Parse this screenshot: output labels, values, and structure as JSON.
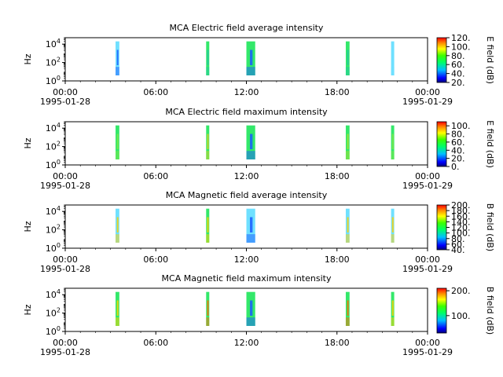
{
  "chart_data": [
    {
      "type": "heatmap",
      "title": "MCA  Electric field average intensity",
      "ylabel": "Hz",
      "colorbar_label": "E field (dB)",
      "colorbar_ticks": [
        "20.",
        "40.",
        "60.",
        "80.",
        "100.",
        "120."
      ],
      "colorbar_range": [
        20,
        120
      ],
      "x_tick_labels": [
        "00:00",
        "06:00",
        "12:00",
        "18:00",
        "00:00"
      ],
      "x_date_labels": [
        "1995-01-28",
        "",
        "",
        "",
        "1995-01-29"
      ],
      "y_ticks": [
        {
          "base": "10",
          "exp": "0"
        },
        {
          "base": "10",
          "exp": "2"
        },
        {
          "base": "10",
          "exp": "4"
        }
      ],
      "bursts": [
        {
          "start": "03:20",
          "end": "03:35",
          "color": "#6fe0ff",
          "core": "#1a5cff"
        },
        {
          "start": "09:20",
          "end": "09:30",
          "color": "#33e86a",
          "core": "#22c7a0"
        },
        {
          "start": "12:00",
          "end": "12:35",
          "color": "#33e86a",
          "core": "#1a5cff"
        },
        {
          "start": "18:35",
          "end": "18:50",
          "color": "#33e86a",
          "core": "#22c7a0"
        },
        {
          "start": "21:35",
          "end": "21:40",
          "color": "#6fe0ff",
          "core": "#6fe0ff"
        }
      ]
    },
    {
      "type": "heatmap",
      "title": "MCA  Electric field maximum intensity",
      "ylabel": "Hz",
      "colorbar_label": "E field (dB)",
      "colorbar_ticks": [
        "0.",
        "20.",
        "40.",
        "60.",
        "80.",
        "100."
      ],
      "colorbar_range": [
        0,
        110
      ],
      "x_tick_labels": [
        "00:00",
        "06:00",
        "12:00",
        "18:00",
        "00:00"
      ],
      "x_date_labels": [
        "1995-01-28",
        "",
        "",
        "",
        "1995-01-29"
      ],
      "y_ticks": [
        {
          "base": "10",
          "exp": "0"
        },
        {
          "base": "10",
          "exp": "2"
        },
        {
          "base": "10",
          "exp": "4"
        }
      ],
      "bursts": [
        {
          "start": "03:20",
          "end": "03:35",
          "color": "#33e86a",
          "core": "#7ee84a"
        },
        {
          "start": "09:20",
          "end": "09:30",
          "color": "#33e86a",
          "core": "#d8d020"
        },
        {
          "start": "12:00",
          "end": "12:35",
          "color": "#33e86a",
          "core": "#1a5cff"
        },
        {
          "start": "18:35",
          "end": "18:50",
          "color": "#33e86a",
          "core": "#a8e030"
        },
        {
          "start": "21:35",
          "end": "21:40",
          "color": "#33e86a",
          "core": "#7ee84a"
        }
      ]
    },
    {
      "type": "heatmap",
      "title": "MCA  Magnetic field average intensity",
      "ylabel": "Hz",
      "colorbar_label": "B field (dB)",
      "colorbar_ticks": [
        "40.",
        "60.",
        "80.",
        "100.",
        "120.",
        "140.",
        "160.",
        "180.",
        "200."
      ],
      "colorbar_range": [
        40,
        200
      ],
      "x_tick_labels": [
        "00:00",
        "06:00",
        "12:00",
        "18:00",
        "00:00"
      ],
      "x_date_labels": [
        "1995-01-28",
        "",
        "",
        "",
        "1995-01-29"
      ],
      "y_ticks": [
        {
          "base": "10",
          "exp": "0"
        },
        {
          "base": "10",
          "exp": "2"
        },
        {
          "base": "10",
          "exp": "4"
        }
      ],
      "bursts": [
        {
          "start": "03:20",
          "end": "03:35",
          "color": "#6fe0ff",
          "core": "#ffd000"
        },
        {
          "start": "09:20",
          "end": "09:30",
          "color": "#33e86a",
          "core": "#ffd000"
        },
        {
          "start": "12:00",
          "end": "12:35",
          "color": "#6fe0ff",
          "core": "#1a5cff"
        },
        {
          "start": "18:35",
          "end": "18:50",
          "color": "#6fe0ff",
          "core": "#ffd000"
        },
        {
          "start": "21:35",
          "end": "21:40",
          "color": "#6fe0ff",
          "core": "#ffd000"
        }
      ]
    },
    {
      "type": "heatmap",
      "title": "MCA  Magnetic field maximum intensity",
      "ylabel": "Hz",
      "colorbar_label": "B field (dB)",
      "colorbar_ticks": [
        "100.",
        "200."
      ],
      "colorbar_range": [
        30,
        210
      ],
      "x_tick_labels": [
        "00:00",
        "06:00",
        "12:00",
        "18:00",
        "00:00"
      ],
      "x_date_labels": [
        "1995-01-28",
        "",
        "",
        "",
        "1995-01-29"
      ],
      "y_ticks": [
        {
          "base": "10",
          "exp": "0"
        },
        {
          "base": "10",
          "exp": "2"
        },
        {
          "base": "10",
          "exp": "4"
        }
      ],
      "bursts": [
        {
          "start": "03:20",
          "end": "03:35",
          "color": "#33e86a",
          "core": "#ffd000"
        },
        {
          "start": "09:20",
          "end": "09:30",
          "color": "#33e86a",
          "core": "#ff6a00"
        },
        {
          "start": "12:00",
          "end": "12:35",
          "color": "#33e86a",
          "core": "#1a5cff"
        },
        {
          "start": "18:35",
          "end": "18:50",
          "color": "#33e86a",
          "core": "#ff6a00"
        },
        {
          "start": "21:35",
          "end": "21:40",
          "color": "#33e86a",
          "core": "#ffd000"
        }
      ]
    }
  ]
}
